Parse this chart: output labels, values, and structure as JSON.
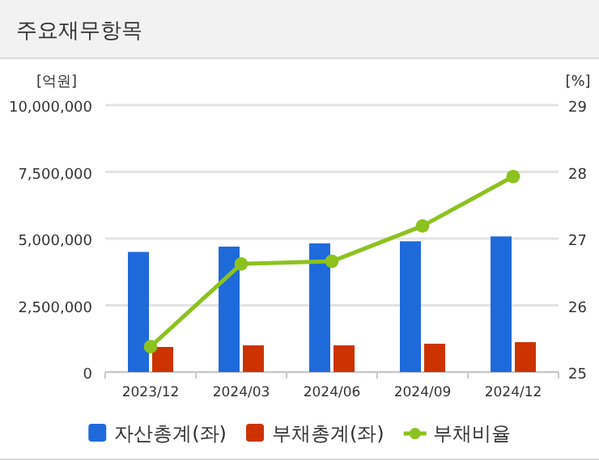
{
  "chart_data": {
    "type": "bar",
    "title": "주요재무항목",
    "ylabel": "[억원]",
    "y2label": "[%]",
    "categories": [
      "2023/12",
      "2024/03",
      "2024/06",
      "2024/09",
      "2024/12"
    ],
    "series": [
      {
        "name": "자산총계(좌)",
        "color": "#1f6adb",
        "values": [
          4500000,
          4700000,
          4820000,
          4900000,
          5080000
        ]
      },
      {
        "name": "부채총계(좌)",
        "color": "#cc3300",
        "values": [
          940000,
          1000000,
          1000000,
          1060000,
          1120000
        ]
      },
      {
        "name": "부채비율",
        "type": "line",
        "axis": "y2",
        "color": "#8cc21f",
        "values": [
          25.38,
          26.62,
          26.66,
          27.19,
          27.93
        ]
      }
    ],
    "ylim": [
      0,
      10000000
    ],
    "yticks": [
      {
        "value": 0,
        "label": "0"
      },
      {
        "value": 2500000,
        "label": "2,500,000"
      },
      {
        "value": 5000000,
        "label": "5,000,000"
      },
      {
        "value": 7500000,
        "label": "7,500,000"
      },
      {
        "value": 10000000,
        "label": "10,000,000"
      }
    ],
    "y2lim": [
      25,
      29
    ],
    "y2ticks": [
      25,
      26,
      27,
      28,
      29
    ],
    "grid": "y",
    "legend": "bottom",
    "marker": "circle"
  }
}
